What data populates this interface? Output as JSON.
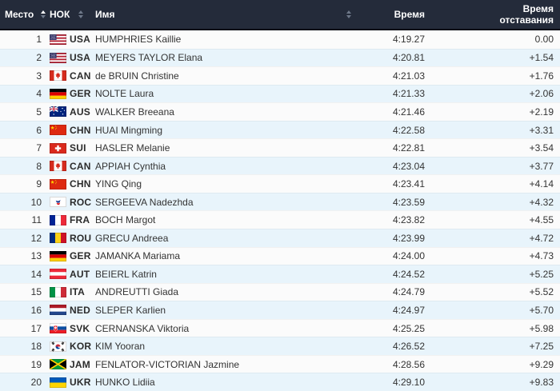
{
  "table": {
    "columns": {
      "place": {
        "label": "Место",
        "sortable": true,
        "sort_state": "asc",
        "icon": "sort-carets-icon"
      },
      "noc": {
        "label": "НОК",
        "sortable": true,
        "sort_state": "none",
        "icon": "sort-carets-icon"
      },
      "name": {
        "label": "Имя",
        "sortable": true,
        "sort_state": "none",
        "icon": "sort-carets-icon"
      },
      "time": {
        "label": "Время",
        "sortable": false
      },
      "behind": {
        "label": "Время отставания",
        "sortable": false
      }
    },
    "rows": [
      {
        "place": "1",
        "noc": "USA",
        "flag_icon": "flag-usa",
        "name": "HUMPHRIES Kaillie",
        "time": "4:19.27",
        "behind": "0.00"
      },
      {
        "place": "2",
        "noc": "USA",
        "flag_icon": "flag-usa",
        "name": "MEYERS TAYLOR Elana",
        "time": "4:20.81",
        "behind": "+1.54"
      },
      {
        "place": "3",
        "noc": "CAN",
        "flag_icon": "flag-can",
        "name": "de BRUIN Christine",
        "time": "4:21.03",
        "behind": "+1.76"
      },
      {
        "place": "4",
        "noc": "GER",
        "flag_icon": "flag-ger",
        "name": "NOLTE Laura",
        "time": "4:21.33",
        "behind": "+2.06"
      },
      {
        "place": "5",
        "noc": "AUS",
        "flag_icon": "flag-aus",
        "name": "WALKER Breeana",
        "time": "4:21.46",
        "behind": "+2.19"
      },
      {
        "place": "6",
        "noc": "CHN",
        "flag_icon": "flag-chn",
        "name": "HUAI Mingming",
        "time": "4:22.58",
        "behind": "+3.31"
      },
      {
        "place": "7",
        "noc": "SUI",
        "flag_icon": "flag-sui",
        "name": "HASLER Melanie",
        "time": "4:22.81",
        "behind": "+3.54"
      },
      {
        "place": "8",
        "noc": "CAN",
        "flag_icon": "flag-can",
        "name": "APPIAH Cynthia",
        "time": "4:23.04",
        "behind": "+3.77"
      },
      {
        "place": "9",
        "noc": "CHN",
        "flag_icon": "flag-chn",
        "name": "YING Qing",
        "time": "4:23.41",
        "behind": "+4.14"
      },
      {
        "place": "10",
        "noc": "ROC",
        "flag_icon": "flag-roc",
        "name": "SERGEEVA Nadezhda",
        "time": "4:23.59",
        "behind": "+4.32"
      },
      {
        "place": "11",
        "noc": "FRA",
        "flag_icon": "flag-fra",
        "name": "BOCH Margot",
        "time": "4:23.82",
        "behind": "+4.55"
      },
      {
        "place": "12",
        "noc": "ROU",
        "flag_icon": "flag-rou",
        "name": "GRECU Andreea",
        "time": "4:23.99",
        "behind": "+4.72"
      },
      {
        "place": "13",
        "noc": "GER",
        "flag_icon": "flag-ger",
        "name": "JAMANKA Mariama",
        "time": "4:24.00",
        "behind": "+4.73"
      },
      {
        "place": "14",
        "noc": "AUT",
        "flag_icon": "flag-aut",
        "name": "BEIERL Katrin",
        "time": "4:24.52",
        "behind": "+5.25"
      },
      {
        "place": "15",
        "noc": "ITA",
        "flag_icon": "flag-ita",
        "name": "ANDREUTTI Giada",
        "time": "4:24.79",
        "behind": "+5.52"
      },
      {
        "place": "16",
        "noc": "NED",
        "flag_icon": "flag-ned",
        "name": "SLEPER Karlien",
        "time": "4:24.97",
        "behind": "+5.70"
      },
      {
        "place": "17",
        "noc": "SVK",
        "flag_icon": "flag-svk",
        "name": "CERNANSKA Viktoria",
        "time": "4:25.25",
        "behind": "+5.98"
      },
      {
        "place": "18",
        "noc": "KOR",
        "flag_icon": "flag-kor",
        "name": "KIM Yooran",
        "time": "4:26.52",
        "behind": "+7.25"
      },
      {
        "place": "19",
        "noc": "JAM",
        "flag_icon": "flag-jam",
        "name": "FENLATOR-VICTORIAN Jazmine",
        "time": "4:28.56",
        "behind": "+9.29"
      },
      {
        "place": "20",
        "noc": "UKR",
        "flag_icon": "flag-ukr",
        "name": "HUNKO Lidiia",
        "time": "4:29.10",
        "behind": "+9.83"
      }
    ]
  },
  "colors": {
    "header_bg": "#242b3a",
    "header_border": "#0c0f16",
    "header_text": "#ffffff",
    "row_bg": "#fbfbfb",
    "row_alt_bg": "#e8f4fb",
    "row_text": "#333333",
    "sort_active": "#ffffff",
    "sort_inactive": "#6e7889"
  }
}
